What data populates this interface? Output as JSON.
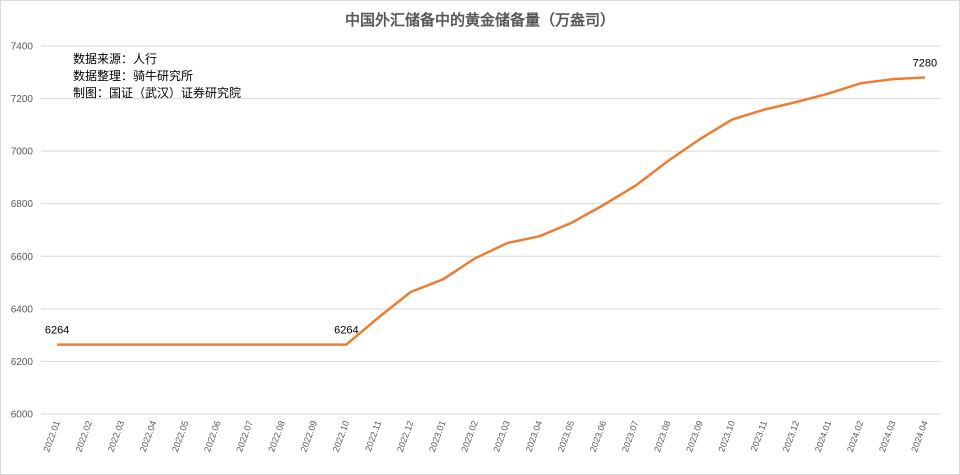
{
  "chart_data": {
    "type": "line",
    "title": "中国外汇储备中的黄金储备量（万盎司）",
    "notes": [
      "数据来源：人行",
      "数据整理：骑牛研究所",
      "制图：国证（武汉）证券研究院"
    ],
    "categories": [
      "2022.01",
      "2022.02",
      "2022.03",
      "2022.04",
      "2022.05",
      "2022.06",
      "2022.07",
      "2022.08",
      "2022.09",
      "2022.10",
      "2022.11",
      "2022.12",
      "2023.01",
      "2023.02",
      "2023.03",
      "2023.04",
      "2023.05",
      "2023.06",
      "2023.07",
      "2023.08",
      "2023.09",
      "2023.10",
      "2023.11",
      "2023.12",
      "2024.01",
      "2024.02",
      "2024.03",
      "2024.04"
    ],
    "values": [
      6264,
      6264,
      6264,
      6264,
      6264,
      6264,
      6264,
      6264,
      6264,
      6264,
      6367,
      6464,
      6512,
      6592,
      6650,
      6676,
      6727,
      6795,
      6869,
      6962,
      7046,
      7120,
      7158,
      7187,
      7219,
      7258,
      7274,
      7280
    ],
    "ylim": [
      6000,
      7400
    ],
    "yticks": [
      6000,
      6200,
      6400,
      6600,
      6800,
      7000,
      7200,
      7400
    ],
    "grid": true,
    "color": "#ED7D31",
    "data_labels": [
      {
        "index": 0,
        "text": "6264"
      },
      {
        "index": 9,
        "text": "6264"
      },
      {
        "index": 27,
        "text": "7280"
      }
    ]
  }
}
